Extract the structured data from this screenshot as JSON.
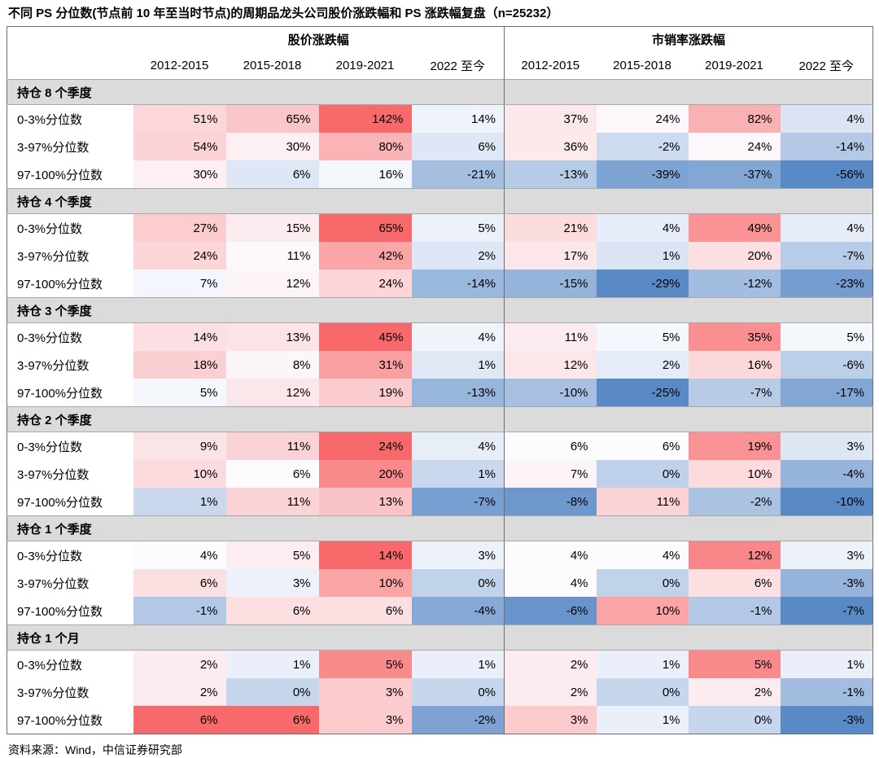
{
  "ui_colors": {
    "group_row_bg": "#DBDBDB",
    "table_border": "#6E6E6E",
    "band_border": "#A8A8A8",
    "text_color": "#000000"
  },
  "chart_data": {
    "type": "heatmap",
    "title": "不同 PS 分位数(节点前 10 年至当时节点)的周期品龙头公司股价涨跌幅和 PS 涨跌幅复盘（n=25232）",
    "sample_size": "n=25232",
    "unit": "%",
    "column_groups": [
      {
        "name": "股价涨跌幅",
        "columns": [
          "2012-2015",
          "2015-2018",
          "2019-2021",
          "2022 至今"
        ]
      },
      {
        "name": "市销率涨跌幅",
        "columns": [
          "2012-2015",
          "2015-2018",
          "2019-2021",
          "2022 至今"
        ]
      }
    ],
    "row_groups": [
      {
        "name": "持仓 8 个季度",
        "rows": [
          {
            "label": "0-3%分位数",
            "price_change_pct": [
              51,
              65,
              142,
              14
            ],
            "ps_change_pct": [
              37,
              24,
              82,
              4
            ]
          },
          {
            "label": "3-97%分位数",
            "price_change_pct": [
              54,
              30,
              80,
              6
            ],
            "ps_change_pct": [
              36,
              -2,
              24,
              -14
            ]
          },
          {
            "label": "97-100%分位数",
            "price_change_pct": [
              30,
              6,
              16,
              -21
            ],
            "ps_change_pct": [
              -13,
              -39,
              -37,
              -56
            ]
          }
        ]
      },
      {
        "name": "持仓 4 个季度",
        "rows": [
          {
            "label": "0-3%分位数",
            "price_change_pct": [
              27,
              15,
              65,
              5
            ],
            "ps_change_pct": [
              21,
              4,
              49,
              4
            ]
          },
          {
            "label": "3-97%分位数",
            "price_change_pct": [
              24,
              11,
              42,
              2
            ],
            "ps_change_pct": [
              17,
              1,
              20,
              -7
            ]
          },
          {
            "label": "97-100%分位数",
            "price_change_pct": [
              7,
              12,
              24,
              -14
            ],
            "ps_change_pct": [
              -15,
              -29,
              -12,
              -23
            ]
          }
        ]
      },
      {
        "name": "持仓 3 个季度",
        "rows": [
          {
            "label": "0-3%分位数",
            "price_change_pct": [
              14,
              13,
              45,
              4
            ],
            "ps_change_pct": [
              11,
              5,
              35,
              5
            ]
          },
          {
            "label": "3-97%分位数",
            "price_change_pct": [
              18,
              8,
              31,
              1
            ],
            "ps_change_pct": [
              12,
              2,
              16,
              -6
            ]
          },
          {
            "label": "97-100%分位数",
            "price_change_pct": [
              5,
              12,
              19,
              -13
            ],
            "ps_change_pct": [
              -10,
              -25,
              -7,
              -17
            ]
          }
        ]
      },
      {
        "name": "持仓 2 个季度",
        "rows": [
          {
            "label": "0-3%分位数",
            "price_change_pct": [
              9,
              11,
              24,
              4
            ],
            "ps_change_pct": [
              6,
              6,
              19,
              3
            ]
          },
          {
            "label": "3-97%分位数",
            "price_change_pct": [
              10,
              6,
              20,
              1
            ],
            "ps_change_pct": [
              7,
              0,
              10,
              -4
            ]
          },
          {
            "label": "97-100%分位数",
            "price_change_pct": [
              1,
              11,
              13,
              -7
            ],
            "ps_change_pct": [
              -8,
              11,
              -2,
              -10
            ]
          }
        ]
      },
      {
        "name": "持仓 1 个季度",
        "rows": [
          {
            "label": "0-3%分位数",
            "price_change_pct": [
              4,
              5,
              14,
              3
            ],
            "ps_change_pct": [
              4,
              4,
              12,
              3
            ]
          },
          {
            "label": "3-97%分位数",
            "price_change_pct": [
              6,
              3,
              10,
              0
            ],
            "ps_change_pct": [
              4,
              0,
              6,
              -3
            ]
          },
          {
            "label": "97-100%分位数",
            "price_change_pct": [
              -1,
              6,
              6,
              -4
            ],
            "ps_change_pct": [
              -6,
              10,
              -1,
              -7
            ]
          }
        ]
      },
      {
        "name": "持仓 1 个月",
        "rows": [
          {
            "label": "0-3%分位数",
            "price_change_pct": [
              2,
              1,
              5,
              1
            ],
            "ps_change_pct": [
              2,
              1,
              5,
              1
            ]
          },
          {
            "label": "3-97%分位数",
            "price_change_pct": [
              2,
              0,
              3,
              0
            ],
            "ps_change_pct": [
              2,
              0,
              2,
              -1
            ]
          },
          {
            "label": "97-100%分位数",
            "price_change_pct": [
              6,
              6,
              3,
              -2
            ],
            "ps_change_pct": [
              3,
              1,
              0,
              -3
            ]
          }
        ]
      }
    ],
    "color_scale": {
      "max_color": "#F8696B",
      "mid_color": "#FCFCFF",
      "min_color": "#5A8AC6",
      "normalization": "per row group: min -> median -> max"
    },
    "source": "资料来源：Wind，中信证券研究部"
  }
}
